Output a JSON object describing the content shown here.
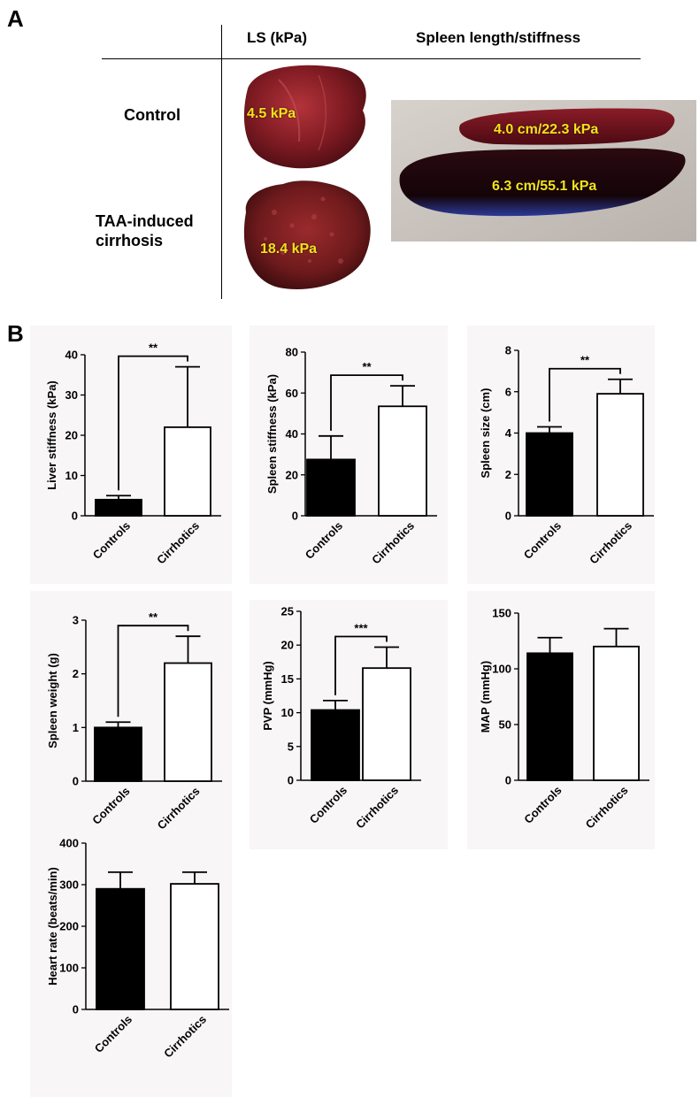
{
  "panel_a": {
    "letter": "A",
    "col_ls": "LS (kPa)",
    "col_spleen": "Spleen length/stiffness",
    "row_control": "Control",
    "row_taa_line1": "TAA-induced",
    "row_taa_line2": "cirrhosis",
    "liver_control_label": "4.5 kPa",
    "liver_cirrhosis_label": "18.4 kPa",
    "spleen_control_label": "4.0 cm/22.3 kPa",
    "spleen_cirrhosis_label": "6.3 cm/55.1 kPa"
  },
  "panel_b": {
    "letter": "B"
  },
  "colors": {
    "control_bar": "#000000",
    "cirrhotic_bar": "#ffffff",
    "label_yellow": "#f3e21b"
  },
  "chart_data": [
    {
      "type": "bar",
      "ylabel": "Liver stiffness (kPa)",
      "categories": [
        "Controls",
        "Cirrhotics"
      ],
      "values": [
        4,
        22
      ],
      "errors": [
        1,
        15
      ],
      "ylim": [
        0,
        40
      ],
      "yticks": [
        0,
        10,
        20,
        30,
        40
      ],
      "significance": "**"
    },
    {
      "type": "bar",
      "ylabel": "Spleen stiffness (kPa)",
      "categories": [
        "Controls",
        "Cirrhotics"
      ],
      "values": [
        27.5,
        53.5
      ],
      "errors": [
        11.5,
        10
      ],
      "ylim": [
        0,
        80
      ],
      "yticks": [
        0,
        20,
        40,
        60,
        80
      ],
      "significance": "**"
    },
    {
      "type": "bar",
      "ylabel": "Spleen size (cm)",
      "categories": [
        "Controls",
        "Cirrhotics"
      ],
      "values": [
        4,
        5.9
      ],
      "errors": [
        0.3,
        0.7
      ],
      "ylim": [
        0,
        8
      ],
      "yticks": [
        0,
        2,
        4,
        6,
        8
      ],
      "significance": "**"
    },
    {
      "type": "bar",
      "ylabel": "Spleen weight (g)",
      "categories": [
        "Controls",
        "Cirrhotics"
      ],
      "values": [
        1,
        2.2
      ],
      "errors": [
        0.1,
        0.5
      ],
      "ylim": [
        0,
        3
      ],
      "yticks": [
        0,
        1,
        2,
        3
      ],
      "significance": "**"
    },
    {
      "type": "bar",
      "ylabel": "PVP (mmHg)",
      "categories": [
        "Controls",
        "Cirrhotics"
      ],
      "values": [
        10.4,
        16.6
      ],
      "errors": [
        1.4,
        3.1
      ],
      "ylim": [
        0,
        25
      ],
      "yticks": [
        0,
        5,
        10,
        15,
        20,
        25
      ],
      "significance": "***"
    },
    {
      "type": "bar",
      "ylabel": "MAP (mmHg)",
      "categories": [
        "Controls",
        "Cirrhotics"
      ],
      "values": [
        114,
        120
      ],
      "errors": [
        14,
        16
      ],
      "ylim": [
        0,
        150
      ],
      "yticks": [
        0,
        50,
        100,
        150
      ],
      "significance": ""
    },
    {
      "type": "bar",
      "ylabel": "Heart rate (beats/min)",
      "categories": [
        "Controls",
        "Cirrhotics"
      ],
      "values": [
        290,
        302
      ],
      "errors": [
        40,
        28
      ],
      "ylim": [
        0,
        400
      ],
      "yticks": [
        0,
        100,
        200,
        300,
        400
      ],
      "significance": ""
    }
  ]
}
